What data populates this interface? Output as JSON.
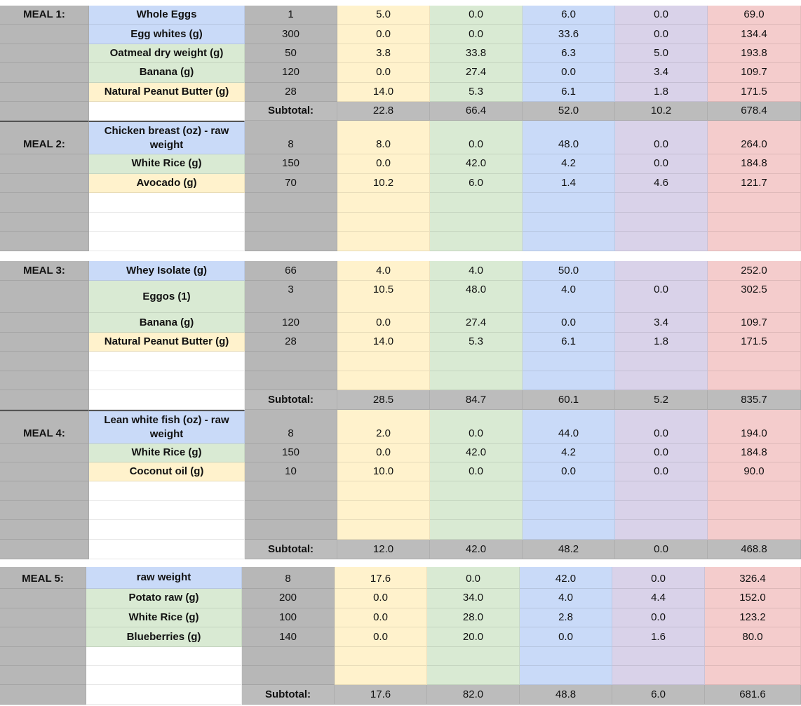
{
  "sections": [
    {
      "meals": [
        {
          "label": "MEAL 1:",
          "items": [
            {
              "food": "Whole Eggs",
              "color": "#c9daf8",
              "cells": [
                "1",
                "5.0",
                "0.0",
                "6.0",
                "0.0",
                "69.0"
              ]
            },
            {
              "food": "Egg whites (g)",
              "color": "#c9daf8",
              "cells": [
                "300",
                "0.0",
                "0.0",
                "33.6",
                "0.0",
                "134.4"
              ]
            },
            {
              "food": "Oatmeal dry weight (g)",
              "color": "#d9ead3",
              "cells": [
                "50",
                "3.8",
                "33.8",
                "6.3",
                "5.0",
                "193.8"
              ]
            },
            {
              "food": "Banana (g)",
              "color": "#d9ead3",
              "cells": [
                "120",
                "0.0",
                "27.4",
                "0.0",
                "3.4",
                "109.7"
              ]
            },
            {
              "food": "Natural Peanut Butter (g)",
              "color": "#fff2cc",
              "cells": [
                "28",
                "14.0",
                "5.3",
                "6.1",
                "1.8",
                "171.5"
              ]
            }
          ],
          "subtotal": {
            "label": "Subtotal:",
            "cells": [
              "22.8",
              "66.4",
              "52.0",
              "10.2",
              "678.4"
            ]
          }
        },
        {
          "label": "MEAL 2:",
          "items": [
            {
              "food": "Chicken breast (oz) - raw weight",
              "color": "#c9daf8",
              "cells": [
                "8",
                "8.0",
                "0.0",
                "48.0",
                "0.0",
                "264.0"
              ]
            },
            {
              "food": "White Rice  (g)",
              "color": "#d9ead3",
              "cells": [
                "150",
                "0.0",
                "42.0",
                "4.2",
                "0.0",
                "184.8"
              ]
            },
            {
              "food": "Avocado (g)",
              "color": "#fff2cc",
              "cells": [
                "70",
                "10.2",
                "6.0",
                "1.4",
                "4.6",
                "121.7"
              ]
            }
          ]
        }
      ]
    },
    {
      "meals": [
        {
          "label": "MEAL 3:",
          "items": [
            {
              "food": "Whey Isolate (g)",
              "color": "#c9daf8",
              "cells": [
                "66",
                "4.0",
                "4.0",
                "50.0",
                null,
                "252.0"
              ]
            },
            {
              "food": "Eggos (1)",
              "color": "#d9ead3",
              "cells": [
                "3",
                "10.5",
                "48.0",
                "4.0",
                "0.0",
                "302.5"
              ]
            },
            {
              "food": "Banana (g)",
              "color": "#d9ead3",
              "cells": [
                "120",
                "0.0",
                "27.4",
                "0.0",
                "3.4",
                "109.7"
              ]
            },
            {
              "food": "Natural Peanut Butter (g)",
              "color": "#fff2cc",
              "cells": [
                "28",
                "14.0",
                "5.3",
                "6.1",
                "1.8",
                "171.5"
              ]
            }
          ],
          "subtotal": {
            "label": "Subtotal:",
            "cells": [
              "28.5",
              "84.7",
              "60.1",
              "5.2",
              "835.7"
            ]
          }
        },
        {
          "label": "MEAL 4:",
          "items": [
            {
              "food": "Lean white fish (oz) - raw weight",
              "color": "#c9daf8",
              "cells": [
                "8",
                "2.0",
                "0.0",
                "44.0",
                "0.0",
                "194.0"
              ]
            },
            {
              "food": "White Rice  (g)",
              "color": "#d9ead3",
              "cells": [
                "150",
                "0.0",
                "42.0",
                "4.2",
                "0.0",
                "184.8"
              ]
            },
            {
              "food": "Coconut oil (g)",
              "color": "#fff2cc",
              "cells": [
                "10",
                "10.0",
                "0.0",
                "0.0",
                "0.0",
                "90.0"
              ]
            }
          ],
          "subtotal": {
            "label": "Subtotal:",
            "cells": [
              "12.0",
              "42.0",
              "48.2",
              "0.0",
              "468.8"
            ]
          }
        }
      ]
    },
    {
      "meals": [
        {
          "label": "MEAL 5:",
          "items": [
            {
              "food": "raw weight",
              "color": "#c9daf8",
              "cells": [
                "8",
                "17.6",
                "0.0",
                "42.0",
                "0.0",
                "326.4"
              ]
            },
            {
              "food": "Potato raw (g)",
              "color": "#d9ead3",
              "cells": [
                "200",
                "0.0",
                "34.0",
                "4.0",
                "4.4",
                "152.0"
              ]
            },
            {
              "food": "White Rice  (g)",
              "color": "#d9ead3",
              "cells": [
                "100",
                "0.0",
                "28.0",
                "2.8",
                "0.0",
                "123.2"
              ]
            },
            {
              "food": "Blueberries (g)",
              "color": "#d9ead3",
              "cells": [
                "140",
                "0.0",
                "20.0",
                "0.0",
                "1.6",
                "80.0"
              ]
            }
          ],
          "subtotal": {
            "label": "Subtotal:",
            "cells": [
              "17.6",
              "82.0",
              "48.8",
              "6.0",
              "681.6"
            ]
          }
        }
      ]
    }
  ]
}
